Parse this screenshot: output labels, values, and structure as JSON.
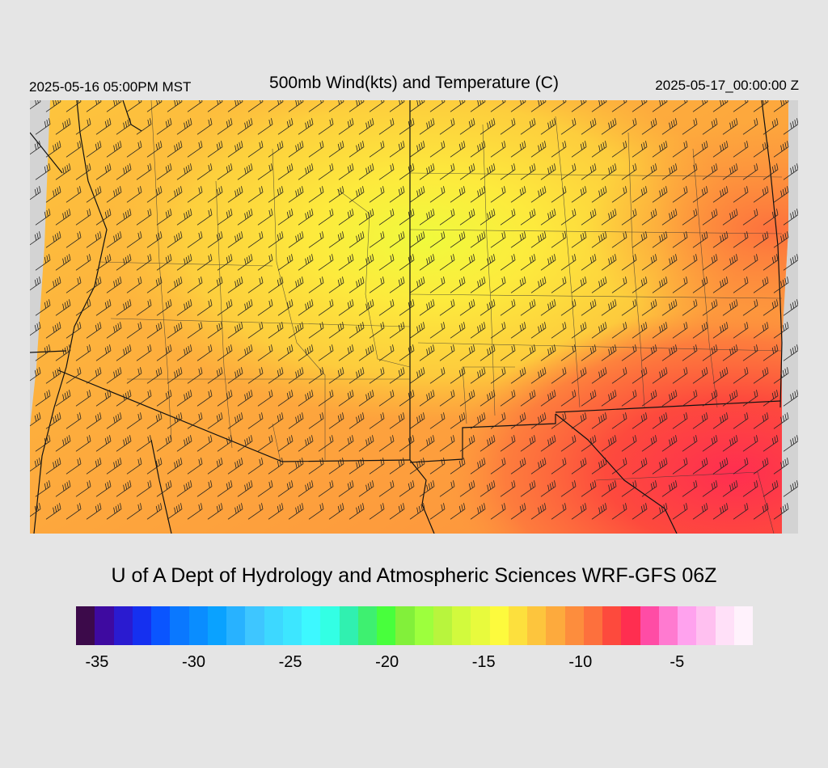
{
  "header": {
    "left_time": "2025-05-16 05:00PM MST",
    "title": "500mb Wind(kts) and Temperature (C)",
    "right_time": "2025-05-17_00:00:00 Z"
  },
  "map": {
    "field": "500mb temperature with wind barbs",
    "colors": {
      "no_data": "#d3d3d3",
      "warm_core": "#ff3b55",
      "mid": "#fb8d3d",
      "cool": "#fdea3f"
    },
    "icons": [
      "wind-barb-icon"
    ]
  },
  "footer": {
    "credit": "U of A Dept of Hydrology and Atmospheric Sciences WRF-GFS 06Z"
  },
  "colorbar": {
    "colors": [
      "#3c0a4a",
      "#3e0aa0",
      "#2a1bd0",
      "#1530f0",
      "#0a55ff",
      "#0a78ff",
      "#0a8dff",
      "#0aa2ff",
      "#28b2ff",
      "#3ec6ff",
      "#3dd8ff",
      "#3de6ff",
      "#3df8ff",
      "#33ffe4",
      "#30f0b0",
      "#3ef070",
      "#48ff3c",
      "#82f03a",
      "#9dff3d",
      "#b8f53d",
      "#d2fa3d",
      "#e8fa3d",
      "#fdfa3d",
      "#fde03d",
      "#fdc53d",
      "#fdaa3d",
      "#fd8d3d",
      "#fd703d",
      "#fd4a3d",
      "#ff2e50",
      "#ff4ca5",
      "#ff7ad0",
      "#ffa2ee",
      "#ffc0f0",
      "#ffe0f8",
      "#fff2fc"
    ],
    "ticks": [
      {
        "label": "-35",
        "value": -35
      },
      {
        "label": "-30",
        "value": -30
      },
      {
        "label": "-25",
        "value": -25
      },
      {
        "label": "-20",
        "value": -20
      },
      {
        "label": "-15",
        "value": -15
      },
      {
        "label": "-10",
        "value": -10
      },
      {
        "label": "-5",
        "value": -5
      }
    ],
    "range": [
      -36,
      -1
    ]
  }
}
